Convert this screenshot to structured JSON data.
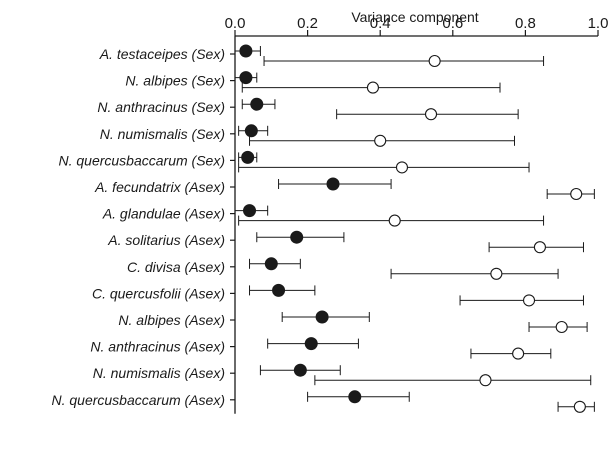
{
  "chart_data": {
    "type": "scatter",
    "xlabel": "Variance component",
    "ylabel": "",
    "xlim": [
      0.0,
      1.0
    ],
    "xticks": [
      "0.0",
      "0.2",
      "0.4",
      "0.6",
      "0.8",
      "1.0"
    ],
    "axis_position": "top",
    "grid": false,
    "legend": "none",
    "categories": [
      "A. testaceipes (Sex)",
      "N. albipes (Sex)",
      "N. anthracinus (Sex)",
      "N. numismalis (Sex)",
      "N. quercusbaccarum (Sex)",
      "A. fecundatrix (Asex)",
      "A. glandulae (Asex)",
      "A. solitarius (Asex)",
      "C. divisa (Asex)",
      "C. quercusfolii (Asex)",
      "N. albipes (Asex)",
      "N. anthracinus (Asex)",
      "N. numismalis (Asex)",
      "N. quercusbaccarum (Asex)"
    ],
    "series": [
      {
        "marker": "filled-circle",
        "color": "#1a1a1a",
        "values": [
          0.03,
          0.03,
          0.06,
          0.045,
          0.035,
          0.27,
          0.04,
          0.17,
          0.1,
          0.12,
          0.24,
          0.21,
          0.18,
          0.33
        ],
        "lower": [
          0.0,
          0.0,
          0.02,
          0.01,
          0.01,
          0.12,
          0.0,
          0.06,
          0.04,
          0.04,
          0.13,
          0.09,
          0.07,
          0.2
        ],
        "upper": [
          0.07,
          0.06,
          0.11,
          0.09,
          0.06,
          0.43,
          0.09,
          0.3,
          0.18,
          0.22,
          0.37,
          0.34,
          0.29,
          0.48
        ]
      },
      {
        "marker": "open-circle",
        "color": "#1a1a1a",
        "values": [
          0.55,
          0.38,
          0.54,
          0.4,
          0.46,
          0.94,
          0.44,
          0.84,
          0.72,
          0.81,
          0.9,
          0.78,
          0.69,
          0.95
        ],
        "lower": [
          0.08,
          0.02,
          0.28,
          0.04,
          0.01,
          0.86,
          0.01,
          0.7,
          0.43,
          0.62,
          0.81,
          0.65,
          0.22,
          0.89
        ],
        "upper": [
          0.85,
          0.73,
          0.78,
          0.77,
          0.81,
          0.99,
          0.85,
          0.96,
          0.89,
          0.96,
          0.97,
          0.87,
          0.98,
          0.99
        ]
      }
    ]
  }
}
